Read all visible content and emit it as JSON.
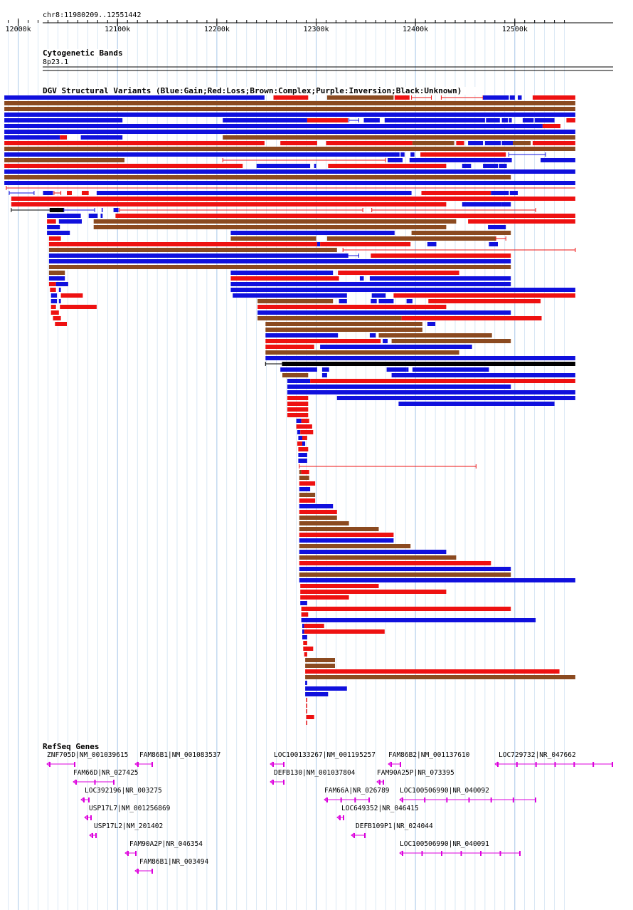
{
  "chart_data": {
    "type": "genome_browser",
    "region": {
      "label": "chr8:11980209..12551442",
      "chrom": "chr8",
      "start": 11980209,
      "end": 12551442
    },
    "ruler": {
      "ticks": [
        {
          "pos": 12000000,
          "label": "12000k"
        },
        {
          "pos": 12100000,
          "label": "12100k"
        },
        {
          "pos": 12200000,
          "label": "12200k"
        },
        {
          "pos": 12300000,
          "label": "12300k"
        },
        {
          "pos": 12400000,
          "label": "12400k"
        },
        {
          "pos": 12500000,
          "label": "12500k"
        }
      ]
    },
    "tracks": {
      "cytoband": {
        "title": "Cytogenetic Bands",
        "band": "8p23.1"
      },
      "dgv": {
        "title": "DGV Structural Variants (Blue:Gain;Red:Loss;Brown:Complex;Purple:Inversion;Black:Unknown)"
      },
      "refseq": {
        "title": "RefSeq Genes"
      }
    },
    "colors": {
      "gain": "#1010dd",
      "loss": "#ee1111",
      "complex": "#8b4a20",
      "unknown": "#000000",
      "gene": "#dd00dd",
      "grid": "#a8c8e8"
    },
    "variants": [
      [
        "loss",
        0,
        0.07,
        0.85
      ],
      [
        "loss",
        0,
        0.83,
        0.87
      ],
      [
        "loss",
        0,
        0.89,
        1.9
      ],
      [
        "loss",
        0,
        0.94,
        1.08
      ],
      [
        "complex",
        0,
        1.1,
        1.48
      ],
      [
        "loss",
        0,
        1.52,
        1.66
      ],
      [
        "loss",
        0,
        1.72,
        2.2
      ],
      [
        "loss",
        0,
        2.22,
        2.5
      ],
      [
        "gain",
        0,
        2.9,
        3.02
      ],
      [
        "gain",
        0,
        3.08,
        3.12
      ],
      [
        "gain",
        0,
        3.14,
        3.24
      ],
      [
        "gain",
        0,
        3.27,
        3.35
      ],
      [
        "gain",
        0,
        3.45,
        3.52
      ],
      [
        "loss",
        0,
        3.59,
        3.95
      ],
      [
        "loss",
        0,
        4.4,
        5.62
      ],
      [
        "loss",
        0,
        5.65,
        6.03
      ],
      [
        "loss",
        0,
        6.24,
        6.6
      ],
      [
        "loss",
        0,
        6.67,
        7.08
      ],
      [
        "loss",
        0,
        7.12,
        7.32
      ],
      [
        "loss",
        0,
        7.4,
        7.48
      ],
      [
        "loss",
        0,
        7.58,
        8.3
      ],
      [
        "loss",
        0,
        8.44,
        8.63
      ],
      [
        "loss",
        0,
        8.7,
        8.96
      ],
      [
        "gain",
        0,
        9.25,
        9.5
      ],
      [
        "gain",
        0,
        9.58,
        10.02
      ],
      [
        "gain",
        0,
        9.96,
        10.0
      ],
      [
        "loss",
        0,
        10.12,
        11.9
      ],
      [
        "loss",
        0,
        11.95,
        12.15
      ],
      [
        "loss",
        0,
        12.72,
        12.93
      ],
      [
        "gain",
        0,
        13.6,
        13.85
      ],
      [
        "gain",
        0,
        13.95,
        14.55
      ],
      [
        "complex",
        0,
        14.52,
        14.9
      ],
      [
        "complex",
        0,
        15.62,
        16.15
      ],
      [
        "loss",
        0,
        15.98,
        16.0
      ],
      [
        "loss",
        0,
        16.07,
        16.65
      ],
      [
        "loss",
        0,
        16.95,
        17.3
      ],
      [
        "loss",
        0,
        17.5,
        18.25
      ],
      [
        "gain",
        0,
        17.9,
        18.4
      ],
      [
        "loss",
        0,
        18.28,
        18.9
      ],
      [
        "loss",
        0,
        18.96,
        19.6
      ],
      [
        "complex",
        0,
        19.87,
        20.3
      ],
      [
        "loss",
        0,
        20.1,
        21.2
      ],
      [
        "gain",
        0,
        20.78,
        21.43
      ],
      [
        "gain",
        0,
        21.37,
        21.5
      ],
      [
        "gain",
        0,
        21.55,
        21.75
      ],
      [
        "gain",
        0,
        21.86,
        22.12
      ],
      [
        "gain",
        0,
        22.14,
        22.52
      ],
      [
        "loss",
        0,
        22.76,
        23.9
      ],
      [
        "loss",
        0,
        24.05,
        24.9
      ],
      [
        "loss",
        0,
        25.0,
        25.1
      ],
      [
        "gain",
        0,
        25.12,
        25.3
      ],
      [
        "gain",
        0,
        25.4,
        26.2
      ],
      [
        "loss",
        0,
        25.6,
        26.0
      ],
      [
        "loss",
        0,
        26.17,
        26.5
      ],
      [
        "loss",
        0,
        26.56,
        26.85
      ],
      [
        "gain",
        0,
        26.9,
        27.22
      ],
      [
        "gain",
        0,
        27.29,
        27.44
      ],
      [
        "loss",
        0,
        27.47,
        27.88
      ],
      [
        "loss",
        0,
        27.95,
        28.33
      ],
      [
        "gain",
        0,
        28.48,
        29.11
      ],
      [
        "loss",
        0,
        29.17,
        29.84
      ],
      [
        "gain",
        0,
        29.9,
        30.61
      ],
      [
        "loss",
        0,
        30.69,
        30.98
      ],
      [
        "gain",
        0,
        31.05,
        31.22
      ],
      [
        "gain",
        0,
        31.3,
        31.57
      ],
      [
        "gain",
        0,
        31.63,
        31.84
      ],
      [
        "gain",
        0,
        31.9,
        32.15
      ],
      [
        "complex",
        0,
        32.22,
        32.62
      ],
      [
        "loss",
        0,
        32.69,
        33.0
      ],
      [
        "loss",
        0,
        33.06,
        33.51
      ],
      [
        "loss",
        0,
        33.57,
        33.82
      ],
      [
        "gain",
        0,
        33.88,
        34.06
      ],
      [
        "loss",
        0,
        34.12,
        34.3
      ],
      [
        "loss",
        0,
        34.36,
        34.59
      ],
      [
        "gain",
        0,
        34.65,
        34.92
      ],
      [
        "gain",
        0,
        34.98,
        35.18
      ],
      [
        "complex",
        0,
        35.25,
        35.52
      ],
      [
        "complex",
        0,
        35.6,
        35.85
      ],
      [
        "complex",
        0,
        35.92,
        36.12
      ],
      [
        "complex",
        0,
        36.19,
        36.39
      ],
      [
        "gain",
        0,
        36.46,
        36.83
      ],
      [
        "gain",
        0,
        36.9,
        37.29
      ],
      [
        "gain",
        0,
        37.36,
        37.63
      ],
      [
        "loss",
        0,
        37.7,
        37.98
      ],
      [
        "complex",
        0,
        38.04,
        38.3
      ],
      [
        "gain",
        0,
        38.38,
        38.62
      ],
      [
        "complex",
        0,
        38.7,
        38.95
      ],
      [
        "complex",
        0,
        39.03,
        39.23
      ],
      [
        "loss",
        0,
        39.3,
        39.62
      ],
      [
        "loss",
        0,
        39.69,
        39.93
      ],
      [
        "gain",
        0,
        40.0,
        40.23
      ],
      [
        "gain",
        0,
        40.31,
        40.56
      ],
      [
        "loss",
        0,
        40.62,
        40.91
      ],
      [
        "gain",
        0,
        40.98,
        41.19
      ],
      [
        "loss",
        0,
        41.26,
        41.5
      ],
      [
        "complex",
        0,
        41.58,
        41.79
      ],
      [
        "complex",
        0,
        41.86,
        42.15
      ],
      [
        "gain",
        0,
        42.21,
        42.37
      ],
      [
        "gain",
        0,
        42.45,
        42.65
      ],
      [
        "gain",
        0,
        42.72,
        42.91
      ],
      [
        "loss",
        0,
        42.99,
        43.2
      ],
      [
        "complex",
        0,
        43.26,
        43.51
      ],
      [
        "complex",
        0,
        43.58,
        43.75
      ],
      [
        "loss",
        0,
        43.84,
        44.09
      ],
      [
        "loss",
        0,
        44.16,
        44.49
      ],
      [
        "gain",
        0,
        44.56,
        44.81
      ],
      [
        "loss",
        0,
        44.88,
        45.09
      ],
      [
        "gain",
        0,
        45.16,
        45.47
      ],
      [
        "gain",
        0,
        45.54,
        45.85
      ],
      [
        "gain",
        0,
        45.92,
        46.21
      ],
      [
        "complex",
        0,
        46.28,
        46.46
      ],
      [
        "complex",
        0,
        46.53,
        46.82
      ],
      [
        "gain",
        0,
        46.89,
        47.1
      ],
      [
        "loss",
        0,
        47.18,
        47.49
      ],
      [
        "loss",
        0,
        47.56,
        47.82
      ],
      [
        "complex",
        0,
        47.89,
        48.13
      ],
      [
        "loss",
        0,
        48.2,
        48.45
      ],
      [
        "gain",
        0,
        48.53,
        48.77
      ],
      [
        "gain",
        0,
        48.85,
        49.0
      ],
      [
        "loss",
        0,
        49.08,
        49.33
      ],
      [
        "loss",
        0,
        49.4,
        49.72
      ],
      [
        "gain",
        0,
        49.8,
        49.98
      ],
      [
        "loss",
        0,
        50.06,
        50.4
      ]
    ],
    "genes": [
      {
        "label": "ZNF705D|NM_001039615"
      },
      {
        "label": "FAM86B1|NM_001083537"
      },
      {
        "label": "LOC100133267|NM_001195257"
      },
      {
        "label": "FAM86B2|NM_001137610"
      },
      {
        "label": "LOC729732|NR_047662"
      },
      {
        "label": "FAM66D|NR_027425"
      },
      {
        "label": "DEFB130|NM_001037804"
      },
      {
        "label": "FAM90A25P|NR_073395"
      },
      {
        "label": "LOC392196|NR_003275"
      },
      {
        "label": "FAM66A|NR_026789"
      },
      {
        "label": "LOC100506990|NR_040092"
      },
      {
        "label": "USP17L7|NM_001256869"
      },
      {
        "label": "LOC649352|NR_046415"
      },
      {
        "label": "USP17L2|NM_201402"
      },
      {
        "label": "DEFB109P1|NR_024044"
      },
      {
        "label": "FAM90A2P|NR_046354"
      },
      {
        "label": "LOC100506990|NR_040091"
      },
      {
        "label": "FAM86B1|NR_003494"
      }
    ]
  }
}
